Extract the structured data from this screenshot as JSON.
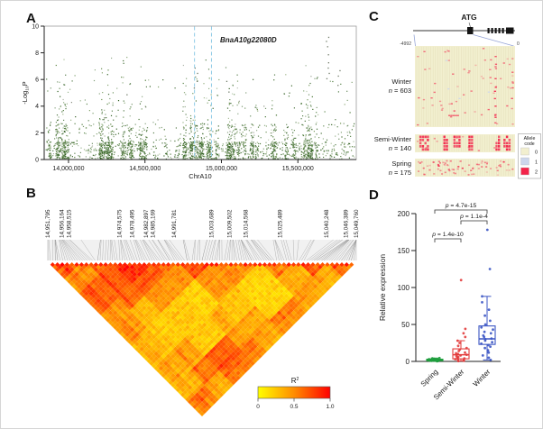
{
  "panels": {
    "a": "A",
    "b": "B",
    "c": "C",
    "d": "D"
  },
  "panel_a": {
    "ylabel_pre": "-Log",
    "ylabel_sub": "10",
    "ylabel_post": "P",
    "xlabel": "ChrA10",
    "gene_label": "BnaA10g22080D",
    "yticks": [
      "0",
      "2",
      "4",
      "6",
      "8",
      "10"
    ],
    "xticks": [
      "14,000,000",
      "14,500,000",
      "15,000,000",
      "15,500,000"
    ],
    "region_line_color": "#8ecae6"
  },
  "panel_b": {
    "legend_title_base": "R",
    "legend_title_sup": "2",
    "legend_ticks": [
      "0",
      "0.5",
      "1.0"
    ]
  },
  "panel_c": {
    "atg": "ATG",
    "left_coord": "-4992",
    "right_coord": "0",
    "groups": [
      {
        "name": "Winter",
        "n_prefix": "n",
        "n_value": " = 603"
      },
      {
        "name": "Semi-Winter",
        "n_prefix": "n",
        "n_value": " = 140"
      },
      {
        "name": "Spring",
        "n_prefix": "n",
        "n_value": " = 175"
      }
    ],
    "legend": {
      "title1": "Allele",
      "title2": "code",
      "items": [
        {
          "label": "0",
          "color": "#f2efcf"
        },
        {
          "label": "1",
          "color": "#ccd6ec"
        },
        {
          "label": "2",
          "color": "#f3244a"
        }
      ]
    }
  },
  "panel_d": {
    "ylabel": "Relative expression"
  },
  "chart_data": [
    {
      "panel": "A",
      "type": "scatter",
      "subtype": "manhattan",
      "xlabel": "ChrA10",
      "ylabel": "-Log10 P",
      "xlim_bp": [
        13841000,
        15882000
      ],
      "ylim": [
        0,
        10
      ],
      "xticks_bp": [
        14000000,
        14500000,
        15000000,
        15500000
      ],
      "yticks": [
        0,
        2,
        4,
        6,
        8,
        10
      ],
      "highlight_region_bp": [
        14824000,
        14935000
      ],
      "gene_annotation": "BnaA10g22080D",
      "n_points_approx": 2600,
      "point_colors": [
        "#2f5e20",
        "#3f702b",
        "#557f3a",
        "#6e9150",
        "#8aa578",
        "#777f6e"
      ],
      "notable_peaks": [
        {
          "x_bp": 15690000,
          "top_values": [
            9.2,
            8.9,
            8.5,
            7.9,
            7.3,
            6.9,
            6.5,
            6.1
          ]
        },
        {
          "x_bp": 14830000,
          "top_values": [
            6.9,
            6.5,
            5.9,
            5.4
          ]
        },
        {
          "x_bp": 15770000,
          "top_values": [
            6.7,
            6.3,
            5.6
          ]
        },
        {
          "x_bp": 15040000,
          "top_values": [
            5.9,
            5.1
          ]
        },
        {
          "x_bp": 14380000,
          "top_values": [
            4.9
          ]
        }
      ]
    },
    {
      "panel": "B",
      "type": "heatmap",
      "subtype": "LD-triangle",
      "value_label": "R2",
      "value_range": [
        0,
        1
      ],
      "legend_ticks": [
        0,
        0.5,
        1.0
      ],
      "color_low": "#ffff00",
      "color_mid": "#ff8c00",
      "color_high": "#ff0000",
      "marker_positions_bp": [
        14951795,
        14956164,
        14958515,
        14974575,
        14978495,
        14982897,
        14985169,
        14991781,
        15003689,
        15009502,
        15014568,
        15025489,
        15040248,
        15046389,
        15049760
      ],
      "marker_position_labels": [
        "14,951,795",
        "14,956,164",
        "14,958,515",
        "14,974,575",
        "14,978,495",
        "14,982,897",
        "14,985,169",
        "14,991,781",
        "15,003,689",
        "15,009,502",
        "15,014,568",
        "15,025,489",
        "15,040,248",
        "15,046,389",
        "15,049,760"
      ],
      "n_markers_rendered": 64
    },
    {
      "panel": "C",
      "type": "haplotype-matrix",
      "promoter_region": [
        -4992,
        0
      ],
      "atg": "ATG",
      "groups": [
        {
          "name": "Winter",
          "n": 603
        },
        {
          "name": "Semi-Winter",
          "n": 140
        },
        {
          "name": "Spring",
          "n": 175
        }
      ],
      "allele_code": [
        {
          "code": 0,
          "color": "#f2efcf"
        },
        {
          "code": 1,
          "color": "#ccd6ec"
        },
        {
          "code": 2,
          "color": "#f3244a"
        }
      ]
    },
    {
      "panel": "D",
      "type": "boxplot",
      "ylabel": "Relative expression",
      "ylim": [
        0,
        200
      ],
      "yticks": [
        0,
        50,
        100,
        150,
        200
      ],
      "categories": [
        "Spring",
        "Semi-Winter",
        "Winter"
      ],
      "colors": [
        "#1f9e3e",
        "#e23b3b",
        "#3b55c4"
      ],
      "series": [
        {
          "name": "Spring",
          "box": {
            "lo": 0.2,
            "q1": 0.8,
            "median": 1.6,
            "q3": 3,
            "hi": 4.5
          },
          "points": [
            0.3,
            0.5,
            0.8,
            1,
            1,
            1.2,
            1.5,
            1.5,
            1.8,
            2,
            2,
            2.3,
            2.6,
            3,
            3.4,
            4,
            4.5
          ]
        },
        {
          "name": "Semi-Winter",
          "box": {
            "lo": 0.5,
            "q1": 3.5,
            "median": 9,
            "q3": 17,
            "hi": 28
          },
          "points": [
            0.5,
            1,
            1.5,
            2,
            3,
            4,
            5,
            6,
            7,
            8,
            9,
            10,
            11,
            12,
            14,
            16,
            18,
            21,
            25,
            28,
            33,
            38,
            44,
            110
          ]
        },
        {
          "name": "Winter",
          "box": {
            "lo": 2,
            "q1": 23,
            "median": 30.5,
            "q3": 48,
            "hi": 88
          },
          "points": [
            2,
            5,
            8,
            12,
            15,
            18,
            20,
            22,
            24,
            26,
            28,
            30,
            31,
            33,
            35,
            38,
            40,
            43,
            46,
            50,
            55,
            62,
            70,
            80,
            88,
            125,
            178
          ]
        }
      ],
      "comparisons": [
        {
          "groups": [
            "Spring",
            "Winter"
          ],
          "from": 0,
          "to": 2,
          "p_italic": "p",
          "text": " = 4.7e-15",
          "label": "p = 4.7e-15"
        },
        {
          "groups": [
            "Semi-Winter",
            "Winter"
          ],
          "from": 1,
          "to": 2,
          "p_italic": "p",
          "text": " = 1.1e-4",
          "label": "p = 1.1e-4"
        },
        {
          "groups": [
            "Spring",
            "Semi-Winter"
          ],
          "from": 0,
          "to": 1,
          "p_italic": "p",
          "text": " = 1.4e-10",
          "label": "p = 1.4e-10"
        }
      ]
    }
  ]
}
